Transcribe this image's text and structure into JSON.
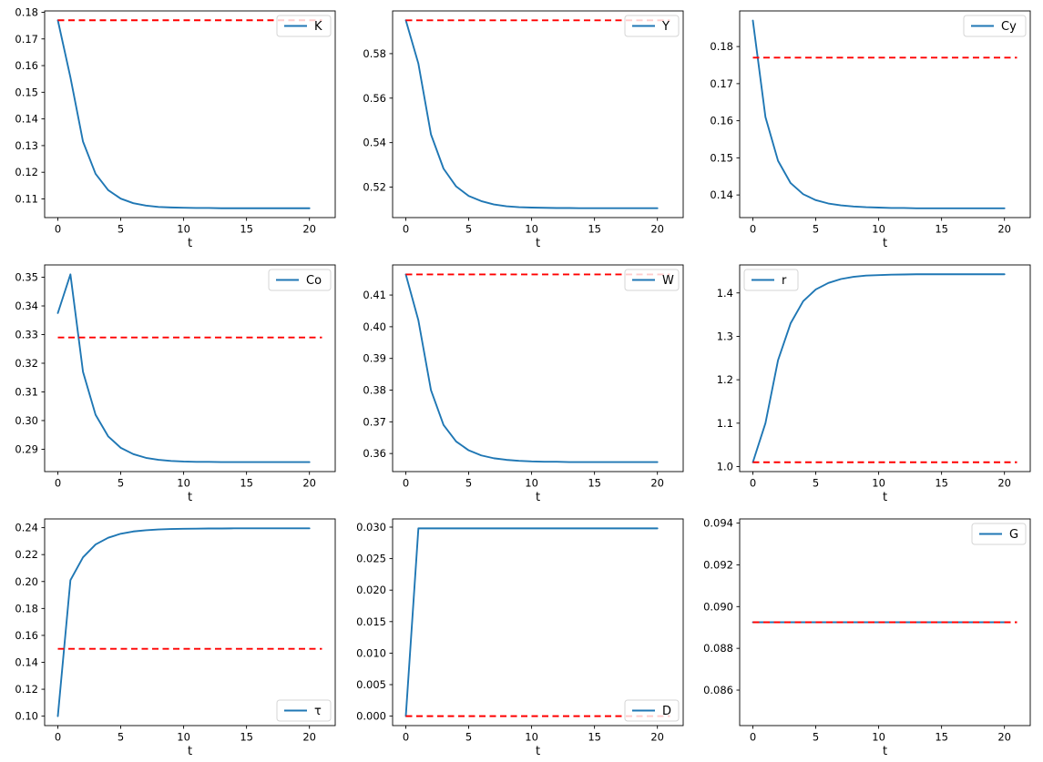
{
  "figure": {
    "background": "#ffffff",
    "grid": "off",
    "rows": 3,
    "cols": 3
  },
  "style": {
    "line_color": "#1f77b4",
    "steady_color": "#ff0000",
    "spine_color": "#000000",
    "legend_border": "#d5d5d5",
    "legend_bg_alpha": 0.8
  },
  "chart_data": [
    {
      "type": "line",
      "legend": "K",
      "legend_position": "top-right",
      "xlabel": "t",
      "x": [
        0,
        1,
        2,
        3,
        4,
        5,
        6,
        7,
        8,
        9,
        10,
        11,
        12,
        13,
        14,
        15,
        16,
        17,
        18,
        19,
        20
      ],
      "values": [
        0.177,
        0.1556,
        0.1315,
        0.1194,
        0.1133,
        0.1101,
        0.1084,
        0.1075,
        0.107,
        0.1068,
        0.1067,
        0.1066,
        0.1066,
        0.1065,
        0.1065,
        0.1065,
        0.1065,
        0.1065,
        0.1065,
        0.1065,
        0.1065
      ],
      "steady_state": 0.177,
      "xlim": [
        -1.05,
        22.05
      ],
      "ylim": [
        0.103,
        0.1805
      ],
      "xticks": [
        0,
        5,
        10,
        15,
        20
      ],
      "yticks": [
        0.11,
        0.12,
        0.13,
        0.14,
        0.15,
        0.16,
        0.17,
        0.18
      ],
      "ytick_decimals": 2
    },
    {
      "type": "line",
      "legend": "Y",
      "legend_position": "top-right",
      "xlabel": "t",
      "x": [
        0,
        1,
        2,
        3,
        4,
        5,
        6,
        7,
        8,
        9,
        10,
        11,
        12,
        13,
        14,
        15,
        16,
        17,
        18,
        19,
        20
      ],
      "values": [
        0.595,
        0.5755,
        0.5437,
        0.5283,
        0.5203,
        0.516,
        0.5137,
        0.5122,
        0.5114,
        0.511,
        0.5108,
        0.5107,
        0.5106,
        0.5106,
        0.5105,
        0.5105,
        0.5105,
        0.5105,
        0.5105,
        0.5105,
        0.5105
      ],
      "steady_state": 0.595,
      "xlim": [
        -1.05,
        22.05
      ],
      "ylim": [
        0.5063,
        0.5992
      ],
      "xticks": [
        0,
        5,
        10,
        15,
        20
      ],
      "yticks": [
        0.52,
        0.54,
        0.56,
        0.58
      ],
      "ytick_decimals": 2
    },
    {
      "type": "line",
      "legend": "Cy",
      "legend_position": "top-right",
      "xlabel": "t",
      "x": [
        0,
        1,
        2,
        3,
        4,
        5,
        6,
        7,
        8,
        9,
        10,
        11,
        12,
        13,
        14,
        15,
        16,
        17,
        18,
        19,
        20
      ],
      "values": [
        0.187,
        0.161,
        0.1492,
        0.1432,
        0.1402,
        0.1386,
        0.1377,
        0.1372,
        0.1369,
        0.1367,
        0.1366,
        0.1365,
        0.1365,
        0.1364,
        0.1364,
        0.1364,
        0.1364,
        0.1364,
        0.1364,
        0.1364,
        0.1364
      ],
      "steady_state": 0.177,
      "xlim": [
        -1.05,
        22.05
      ],
      "ylim": [
        0.1339,
        0.1896
      ],
      "xticks": [
        0,
        5,
        10,
        15,
        20
      ],
      "yticks": [
        0.14,
        0.15,
        0.16,
        0.17,
        0.18
      ],
      "ytick_decimals": 2
    },
    {
      "type": "line",
      "legend": "Co",
      "legend_position": "top-right",
      "xlabel": "t",
      "x": [
        0,
        1,
        2,
        3,
        4,
        5,
        6,
        7,
        8,
        9,
        10,
        11,
        12,
        13,
        14,
        15,
        16,
        17,
        18,
        19,
        20
      ],
      "values": [
        0.3375,
        0.351,
        0.317,
        0.302,
        0.2945,
        0.2905,
        0.2883,
        0.287,
        0.2863,
        0.2859,
        0.2857,
        0.2856,
        0.2856,
        0.2855,
        0.2855,
        0.2855,
        0.2855,
        0.2855,
        0.2855,
        0.2855,
        0.2855
      ],
      "steady_state": 0.329,
      "xlim": [
        -1.05,
        22.05
      ],
      "ylim": [
        0.2822,
        0.3543
      ],
      "xticks": [
        0,
        5,
        10,
        15,
        20
      ],
      "yticks": [
        0.29,
        0.3,
        0.31,
        0.32,
        0.33,
        0.34,
        0.35
      ],
      "ytick_decimals": 2
    },
    {
      "type": "line",
      "legend": "W",
      "legend_position": "top-right",
      "xlabel": "t",
      "x": [
        0,
        1,
        2,
        3,
        4,
        5,
        6,
        7,
        8,
        9,
        10,
        11,
        12,
        13,
        14,
        15,
        16,
        17,
        18,
        19,
        20
      ],
      "values": [
        0.4165,
        0.402,
        0.38,
        0.369,
        0.3638,
        0.361,
        0.3594,
        0.3585,
        0.358,
        0.3577,
        0.3575,
        0.3574,
        0.3574,
        0.3573,
        0.3573,
        0.3573,
        0.3573,
        0.3573,
        0.3573,
        0.3573,
        0.3573
      ],
      "steady_state": 0.4165,
      "xlim": [
        -1.05,
        22.05
      ],
      "ylim": [
        0.3543,
        0.4195
      ],
      "xticks": [
        0,
        5,
        10,
        15,
        20
      ],
      "yticks": [
        0.36,
        0.37,
        0.38,
        0.39,
        0.4,
        0.41
      ],
      "ytick_decimals": 2
    },
    {
      "type": "line",
      "legend": "r",
      "legend_position": "top-left",
      "xlabel": "t",
      "x": [
        0,
        1,
        2,
        3,
        4,
        5,
        6,
        7,
        8,
        9,
        10,
        11,
        12,
        13,
        14,
        15,
        16,
        17,
        18,
        19,
        20
      ],
      "values": [
        1.01,
        1.1,
        1.245,
        1.33,
        1.381,
        1.408,
        1.423,
        1.432,
        1.437,
        1.44,
        1.441,
        1.442,
        1.4425,
        1.443,
        1.443,
        1.443,
        1.443,
        1.443,
        1.443,
        1.443,
        1.443
      ],
      "steady_state": 1.01,
      "xlim": [
        -1.05,
        22.05
      ],
      "ylim": [
        0.9885,
        1.4645
      ],
      "xticks": [
        0,
        5,
        10,
        15,
        20
      ],
      "yticks": [
        1.0,
        1.1,
        1.2,
        1.3,
        1.4
      ],
      "ytick_decimals": 1
    },
    {
      "type": "line",
      "legend": "τ",
      "legend_position": "bottom-right",
      "xlabel": "t",
      "x": [
        0,
        1,
        2,
        3,
        4,
        5,
        6,
        7,
        8,
        9,
        10,
        11,
        12,
        13,
        14,
        15,
        16,
        17,
        18,
        19,
        20
      ],
      "values": [
        0.1,
        0.201,
        0.218,
        0.2275,
        0.2325,
        0.2355,
        0.2372,
        0.2381,
        0.2387,
        0.239,
        0.2392,
        0.2393,
        0.2394,
        0.2394,
        0.2395,
        0.2395,
        0.2395,
        0.2395,
        0.2395,
        0.2395,
        0.2395
      ],
      "steady_state": 0.15,
      "xlim": [
        -1.05,
        22.05
      ],
      "ylim": [
        0.093,
        0.2465
      ],
      "xticks": [
        0,
        5,
        10,
        15,
        20
      ],
      "yticks": [
        0.1,
        0.12,
        0.14,
        0.16,
        0.18,
        0.2,
        0.22,
        0.24
      ],
      "ytick_decimals": 2
    },
    {
      "type": "line",
      "legend": "D",
      "legend_position": "bottom-right",
      "xlabel": "t",
      "x": [
        0,
        1,
        2,
        3,
        4,
        5,
        6,
        7,
        8,
        9,
        10,
        11,
        12,
        13,
        14,
        15,
        16,
        17,
        18,
        19,
        20
      ],
      "values": [
        0.0,
        0.0298,
        0.0298,
        0.0298,
        0.0298,
        0.0298,
        0.0298,
        0.0298,
        0.0298,
        0.0298,
        0.0298,
        0.0298,
        0.0298,
        0.0298,
        0.0298,
        0.0298,
        0.0298,
        0.0298,
        0.0298,
        0.0298,
        0.0298
      ],
      "steady_state": 0.0,
      "xlim": [
        -1.05,
        22.05
      ],
      "ylim": [
        -0.0015,
        0.0313
      ],
      "xticks": [
        0,
        5,
        10,
        15,
        20
      ],
      "yticks": [
        0.0,
        0.005,
        0.01,
        0.015,
        0.02,
        0.025,
        0.03
      ],
      "ytick_decimals": 3
    },
    {
      "type": "line",
      "legend": "G",
      "legend_position": "top-right",
      "xlabel": "t",
      "x": [
        0,
        1,
        2,
        3,
        4,
        5,
        6,
        7,
        8,
        9,
        10,
        11,
        12,
        13,
        14,
        15,
        16,
        17,
        18,
        19,
        20
      ],
      "values": [
        0.08925,
        0.08925,
        0.08925,
        0.08925,
        0.08925,
        0.08925,
        0.08925,
        0.08925,
        0.08925,
        0.08925,
        0.08925,
        0.08925,
        0.08925,
        0.08925,
        0.08925,
        0.08925,
        0.08925,
        0.08925,
        0.08925,
        0.08925,
        0.08925
      ],
      "steady_state": 0.08925,
      "xlim": [
        -1.05,
        22.05
      ],
      "ylim": [
        0.0843,
        0.0942
      ],
      "xticks": [
        0,
        5,
        10,
        15,
        20
      ],
      "yticks": [
        0.086,
        0.088,
        0.09,
        0.092,
        0.094
      ],
      "ytick_decimals": 3
    }
  ]
}
